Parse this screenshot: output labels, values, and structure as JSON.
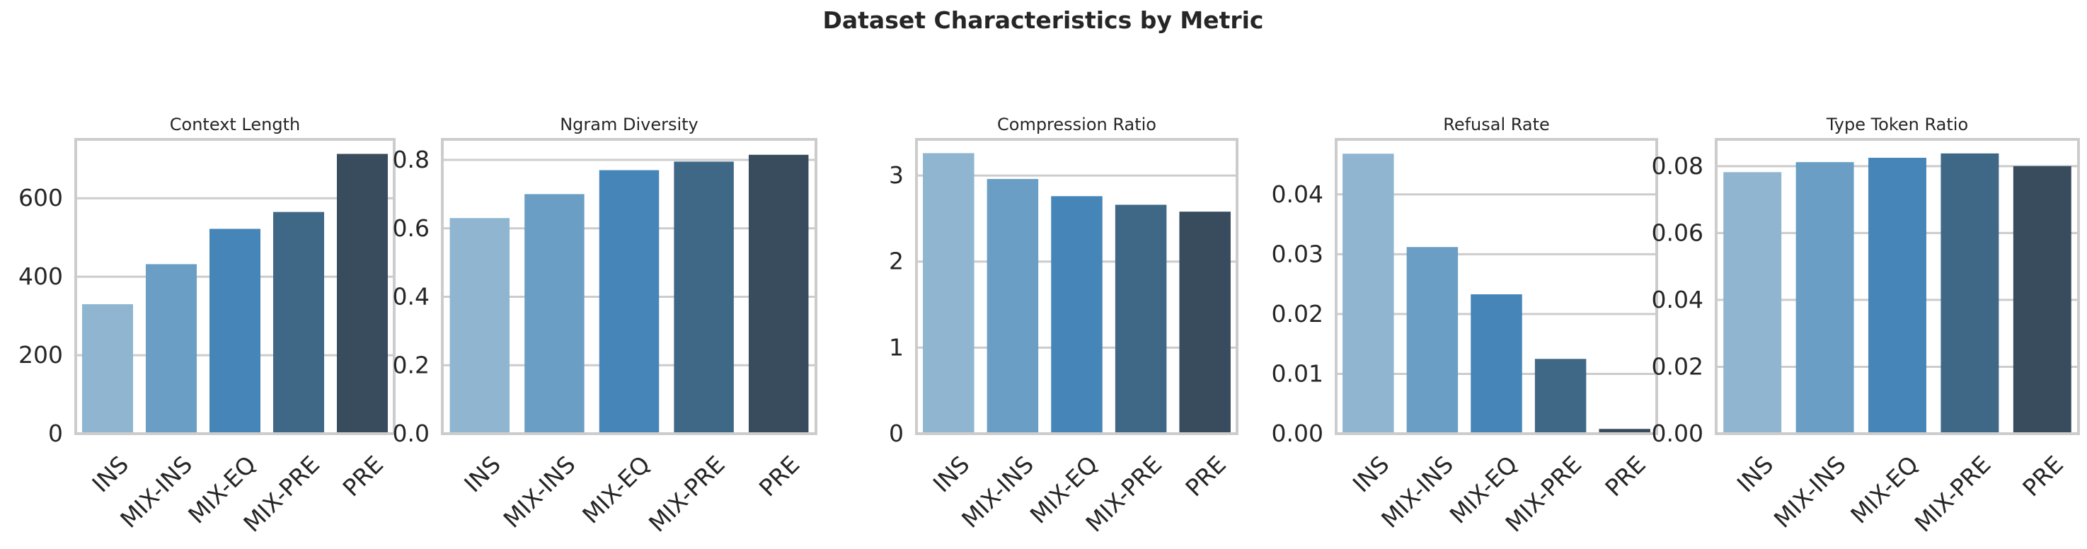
{
  "title": "Dataset Characteristics by Metric",
  "palette": [
    "#8fb5d1",
    "#6a9ec4",
    "#4685b8",
    "#3f6886",
    "#394c5d"
  ],
  "chart_data": [
    {
      "type": "bar",
      "title": "Context Length",
      "categories": [
        "INS",
        "MIX-INS",
        "MIX-EQ",
        "MIX-PRE",
        "PRE"
      ],
      "values": [
        330,
        432,
        522,
        565,
        713
      ],
      "ylim": [
        0,
        750
      ],
      "yticks": [
        0,
        200,
        400,
        600
      ],
      "ytick_labels": [
        "0",
        "200",
        "400",
        "600"
      ],
      "grid": true
    },
    {
      "type": "bar",
      "title": "Ngram Diversity",
      "categories": [
        "INS",
        "MIX-INS",
        "MIX-EQ",
        "MIX-PRE",
        "PRE"
      ],
      "values": [
        0.63,
        0.7,
        0.77,
        0.795,
        0.815
      ],
      "ylim": [
        0,
        0.86
      ],
      "yticks": [
        0,
        0.2,
        0.4,
        0.6,
        0.8
      ],
      "ytick_labels": [
        "0.0",
        "0.2",
        "0.4",
        "0.6",
        "0.8"
      ],
      "grid": true
    },
    {
      "type": "bar",
      "title": "Compression Ratio",
      "categories": [
        "INS",
        "MIX-INS",
        "MIX-EQ",
        "MIX-PRE",
        "PRE"
      ],
      "values": [
        3.26,
        2.96,
        2.76,
        2.66,
        2.58
      ],
      "ylim": [
        0,
        3.42
      ],
      "yticks": [
        0,
        1,
        2,
        3
      ],
      "ytick_labels": [
        "0",
        "1",
        "2",
        "3"
      ],
      "grid": true
    },
    {
      "type": "bar",
      "title": "Refusal Rate",
      "categories": [
        "INS",
        "MIX-INS",
        "MIX-EQ",
        "MIX-PRE",
        "PRE"
      ],
      "values": [
        0.0468,
        0.0312,
        0.0233,
        0.0125,
        0.0008
      ],
      "ylim": [
        0,
        0.0492
      ],
      "yticks": [
        0,
        0.01,
        0.02,
        0.03,
        0.04
      ],
      "ytick_labels": [
        "0.00",
        "0.01",
        "0.02",
        "0.03",
        "0.04"
      ],
      "grid": true
    },
    {
      "type": "bar",
      "title": "Type Token Ratio",
      "categories": [
        "INS",
        "MIX-INS",
        "MIX-EQ",
        "MIX-PRE",
        "PRE"
      ],
      "values": [
        0.0782,
        0.0812,
        0.0825,
        0.0838,
        0.08
      ],
      "ylim": [
        0,
        0.088
      ],
      "yticks": [
        0,
        0.02,
        0.04,
        0.06,
        0.08
      ],
      "ytick_labels": [
        "0.00",
        "0.02",
        "0.04",
        "0.06",
        "0.08"
      ],
      "grid": true
    }
  ]
}
